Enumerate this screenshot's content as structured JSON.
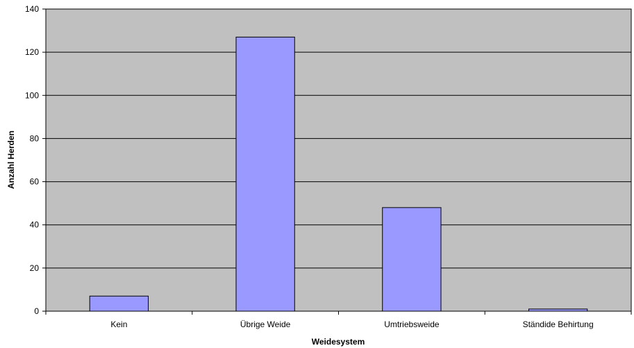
{
  "chart_data": {
    "type": "bar",
    "categories": [
      "Kein",
      "Übrige Weide",
      "Umtriebsweide",
      "Ständide Behirtung"
    ],
    "values": [
      7,
      127,
      48,
      1
    ],
    "xlabel": "Weidesystem",
    "ylabel": "Anzahl Herden",
    "ylim": [
      0,
      140
    ],
    "yticks": [
      "0",
      "20",
      "40",
      "60",
      "80",
      "100",
      "120",
      "140"
    ],
    "grid": true,
    "legend": "none",
    "colors": {
      "plot_background": "#c0c0c0",
      "bar_fill": "#9999ff",
      "bar_stroke": "#000000",
      "gridline": "#000000"
    }
  }
}
